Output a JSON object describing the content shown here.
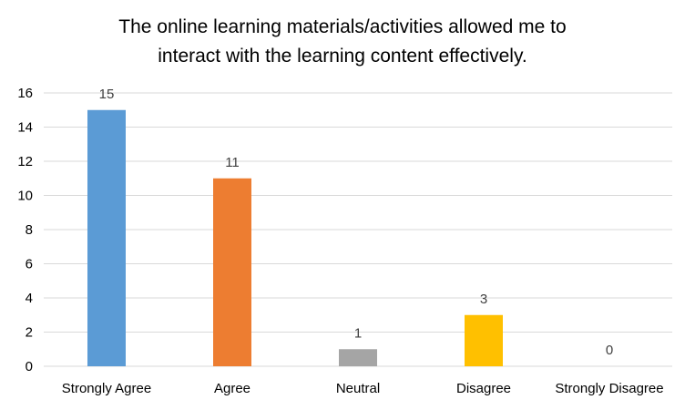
{
  "chart_data": {
    "type": "bar",
    "title": "The online learning materials/activities allowed me to\ninteract with the learning content effectively.",
    "categories": [
      "Strongly Agree",
      "Agree",
      "Neutral",
      "Disagree",
      "Strongly Disagree"
    ],
    "values": [
      15,
      11,
      1,
      3,
      0
    ],
    "data_labels": [
      "15",
      "11",
      "1",
      "3",
      "0"
    ],
    "bar_colors": [
      "#5b9bd5",
      "#ed7d31",
      "#a5a5a5",
      "#ffc000",
      "#4472c4"
    ],
    "ylim": [
      0,
      16
    ],
    "yticks": [
      0,
      2,
      4,
      6,
      8,
      10,
      12,
      14,
      16
    ],
    "grid": true,
    "legend": "none",
    "xlabel": "",
    "ylabel": ""
  }
}
